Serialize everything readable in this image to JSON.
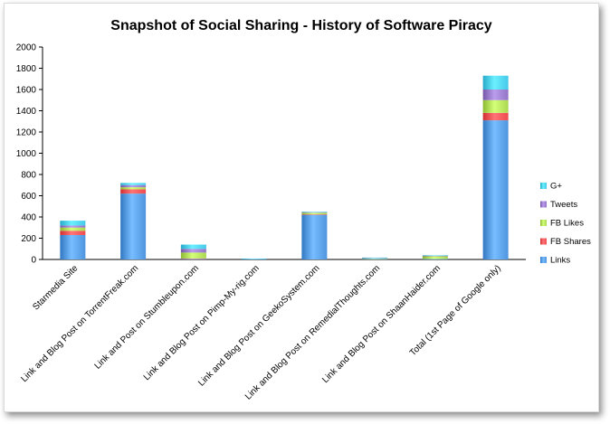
{
  "chart_data": {
    "type": "bar",
    "stacked": true,
    "title": "Snapshot of Social Sharing - History of Software Piracy",
    "xlabel": "",
    "ylabel": "",
    "ylim": [
      0,
      2000
    ],
    "yticks": [
      0,
      200,
      400,
      600,
      800,
      1000,
      1200,
      1400,
      1600,
      1800,
      2000
    ],
    "grid": false,
    "legend_position": "right",
    "categories": [
      "Starmedia Site",
      "Link and Blog Post on TorrentFreak.com",
      "Link and Post on Stumbleupon.com",
      "Link and Blog Post on Pimp-My-rig.com",
      "Link and Blog Post on GeekoSystem.com",
      "Link and Blog Post on RemedialThoughts.com",
      "Link and Blog Post on ShaanHaider.com",
      "Total (1st Page of Google only)"
    ],
    "series": [
      {
        "name": "Links",
        "color": "#4a90d9",
        "values": [
          230,
          620,
          5,
          5,
          420,
          5,
          5,
          1310
        ]
      },
      {
        "name": "FB Shares",
        "color": "#e8474a",
        "values": [
          40,
          40,
          5,
          0,
          5,
          0,
          0,
          70
        ]
      },
      {
        "name": "FB Likes",
        "color": "#a6d24b",
        "values": [
          30,
          20,
          55,
          0,
          15,
          5,
          25,
          120
        ]
      },
      {
        "name": "Tweets",
        "color": "#8e6fc0",
        "values": [
          20,
          20,
          35,
          0,
          5,
          5,
          5,
          100
        ]
      },
      {
        "name": "G+",
        "color": "#3fc3e3",
        "values": [
          45,
          20,
          40,
          3,
          5,
          3,
          5,
          130
        ]
      }
    ]
  }
}
